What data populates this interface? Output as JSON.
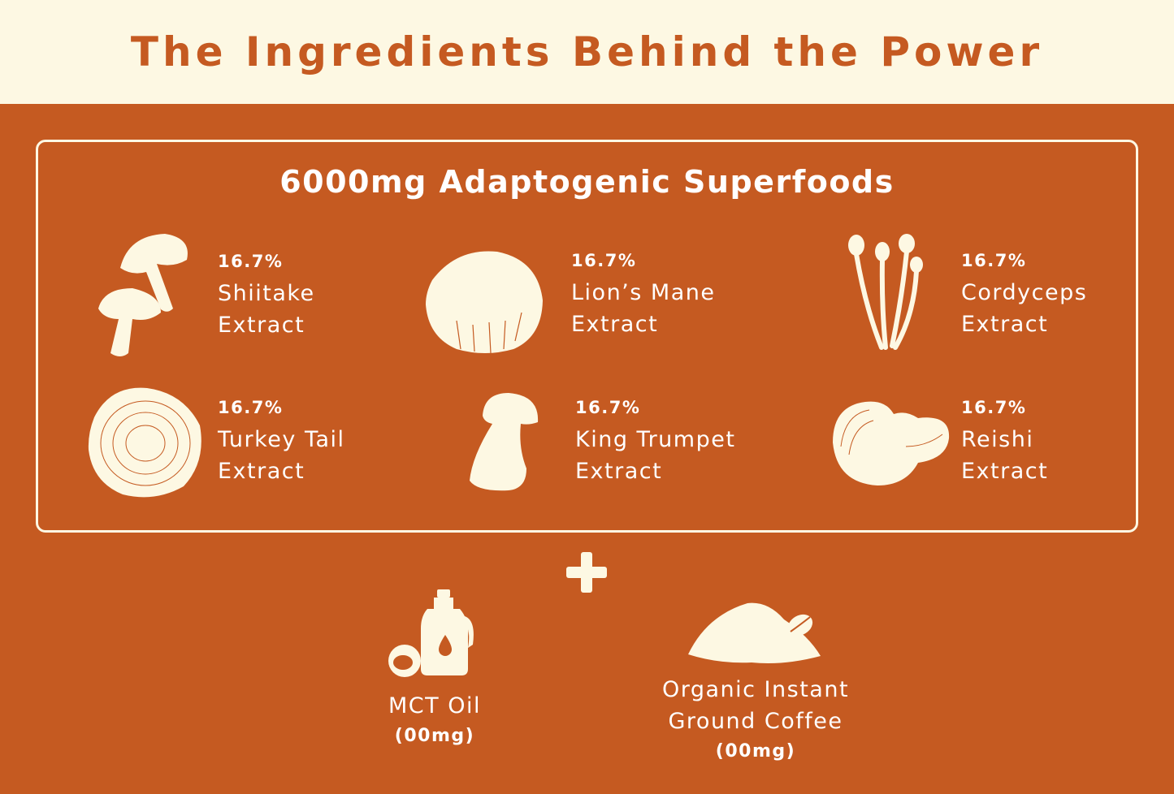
{
  "header": {
    "title": "The Ingredients Behind the Power"
  },
  "superfoods": {
    "title": "6000mg Adaptogenic Superfoods",
    "items": [
      {
        "percent": "16.7%",
        "name1": "Shiitake",
        "name2": "Extract",
        "icon": "shiitake-icon"
      },
      {
        "percent": "16.7%",
        "name1": "Lion’s Mane",
        "name2": "Extract",
        "icon": "lions-mane-icon"
      },
      {
        "percent": "16.7%",
        "name1": "Cordyceps",
        "name2": "Extract",
        "icon": "cordyceps-icon"
      },
      {
        "percent": "16.7%",
        "name1": "Turkey Tail",
        "name2": "Extract",
        "icon": "turkey-tail-icon"
      },
      {
        "percent": "16.7%",
        "name1": "King Trumpet",
        "name2": "Extract",
        "icon": "king-trumpet-icon"
      },
      {
        "percent": "16.7%",
        "name1": "Reishi",
        "name2": "Extract",
        "icon": "reishi-icon"
      }
    ]
  },
  "extras": [
    {
      "name1": "MCT Oil",
      "name2": "",
      "amount": "(00mg)",
      "icon": "mct-oil-icon"
    },
    {
      "name1": "Organic Instant",
      "name2": "Ground Coffee",
      "amount": "(00mg)",
      "icon": "coffee-powder-icon"
    }
  ],
  "colors": {
    "brand": "#c55a21",
    "cream": "#fdf8e3"
  }
}
